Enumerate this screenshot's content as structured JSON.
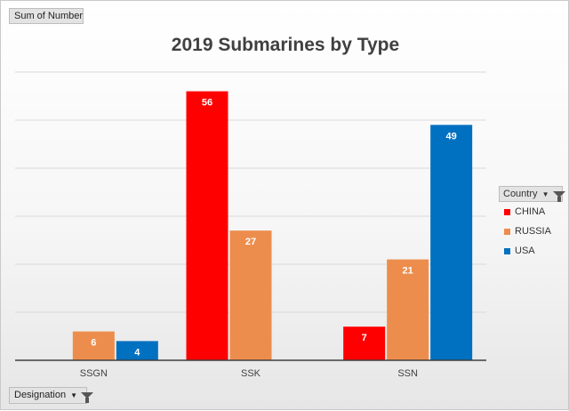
{
  "field_buttons": {
    "values_field": "Sum of Number",
    "axis_field": "Designation",
    "legend_field": "Country"
  },
  "legend": {
    "icons": [
      "dropdown-arrow-icon",
      "filter-funnel-icon"
    ]
  },
  "colors": {
    "CHINA": "#ff0000",
    "RUSSIA": "#ed8d4d",
    "USA": "#0070c0"
  },
  "chart_data": {
    "type": "bar",
    "title": "2019 Submarines by Type",
    "xlabel": "",
    "ylabel": "",
    "categories": [
      "SSGN",
      "SSK",
      "SSN"
    ],
    "series": [
      {
        "name": "CHINA",
        "values": [
          null,
          56,
          7
        ]
      },
      {
        "name": "RUSSIA",
        "values": [
          6,
          27,
          21
        ]
      },
      {
        "name": "USA",
        "values": [
          4,
          null,
          49
        ]
      }
    ],
    "ylim": [
      0,
      60
    ],
    "grid": true,
    "legend_position": "right",
    "data_labels": true
  }
}
